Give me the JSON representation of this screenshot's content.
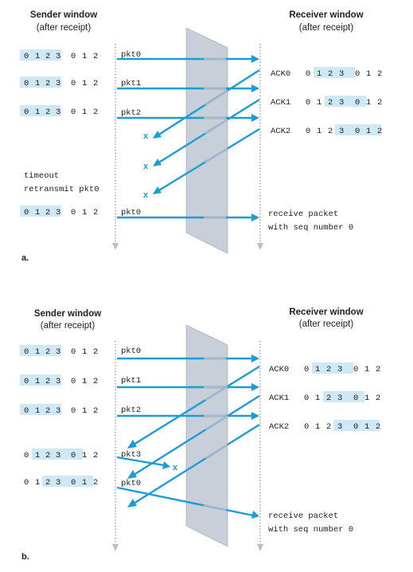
{
  "diagram": {
    "panel_a": {
      "label": "a.",
      "sender_title": "Sender window",
      "sender_subtitle": "(after receipt)",
      "receiver_title": "Receiver window",
      "receiver_subtitle": "(after receipt)",
      "sender_rows": [
        {
          "seq": [
            "0",
            "1",
            "2",
            "3",
            "0",
            "1",
            "2"
          ],
          "window_start": 0,
          "packet": "pkt0"
        },
        {
          "seq": [
            "0",
            "1",
            "2",
            "3",
            "0",
            "1",
            "2"
          ],
          "window_start": 0,
          "packet": "pkt1"
        },
        {
          "seq": [
            "0",
            "1",
            "2",
            "3",
            "0",
            "1",
            "2"
          ],
          "window_start": 0,
          "packet": "pkt2"
        },
        {
          "seq": [
            "0",
            "1",
            "2",
            "3",
            "0",
            "1",
            "2"
          ],
          "window_start": 0,
          "packet": "pkt0"
        }
      ],
      "timeout_lines": [
        "timeout",
        "retransmit pkt0"
      ],
      "receiver_rows": [
        {
          "ack": "ACK0",
          "seq": [
            "0",
            "1",
            "2",
            "3",
            "0",
            "1",
            "2"
          ],
          "window_start": 1
        },
        {
          "ack": "ACK1",
          "seq": [
            "0",
            "1",
            "2",
            "3",
            "0",
            "1",
            "2"
          ],
          "window_start": 2
        },
        {
          "ack": "ACK2",
          "seq": [
            "0",
            "1",
            "2",
            "3",
            "0",
            "1",
            "2"
          ],
          "window_start": 3
        }
      ],
      "receive_note": [
        "receive packet",
        "with seq number 0"
      ],
      "lost_marker": "x"
    },
    "panel_b": {
      "label": "b.",
      "sender_title": "Sender window",
      "sender_subtitle": "(after receipt)",
      "receiver_title": "Receiver window",
      "receiver_subtitle": "(after receipt)",
      "sender_rows": [
        {
          "seq": [
            "0",
            "1",
            "2",
            "3",
            "0",
            "1",
            "2"
          ],
          "window_start": 0,
          "packet": "pkt0"
        },
        {
          "seq": [
            "0",
            "1",
            "2",
            "3",
            "0",
            "1",
            "2"
          ],
          "window_start": 0,
          "packet": "pkt1"
        },
        {
          "seq": [
            "0",
            "1",
            "2",
            "3",
            "0",
            "1",
            "2"
          ],
          "window_start": 0,
          "packet": "pkt2"
        },
        {
          "seq": [
            "0",
            "1",
            "2",
            "3",
            "0",
            "1",
            "2"
          ],
          "window_start": 1,
          "packet": "pkt3"
        },
        {
          "seq": [
            "0",
            "1",
            "2",
            "3",
            "0",
            "1",
            "2"
          ],
          "window_start": 2,
          "packet": "pkt0"
        }
      ],
      "receiver_rows": [
        {
          "ack": "ACK0",
          "seq": [
            "0",
            "1",
            "2",
            "3",
            "0",
            "1",
            "2"
          ],
          "window_start": 1
        },
        {
          "ack": "ACK1",
          "seq": [
            "0",
            "1",
            "2",
            "3",
            "0",
            "1",
            "2"
          ],
          "window_start": 2
        },
        {
          "ack": "ACK2",
          "seq": [
            "0",
            "1",
            "2",
            "3",
            "0",
            "1",
            "2"
          ],
          "window_start": 3
        }
      ],
      "receive_note": [
        "receive packet",
        "with seq number 0"
      ],
      "lost_marker": "x"
    },
    "colors": {
      "arrow": "#1a9cd8",
      "window_highlight": "#cfe8f6",
      "network_slab": "#b7bfcc"
    }
  }
}
